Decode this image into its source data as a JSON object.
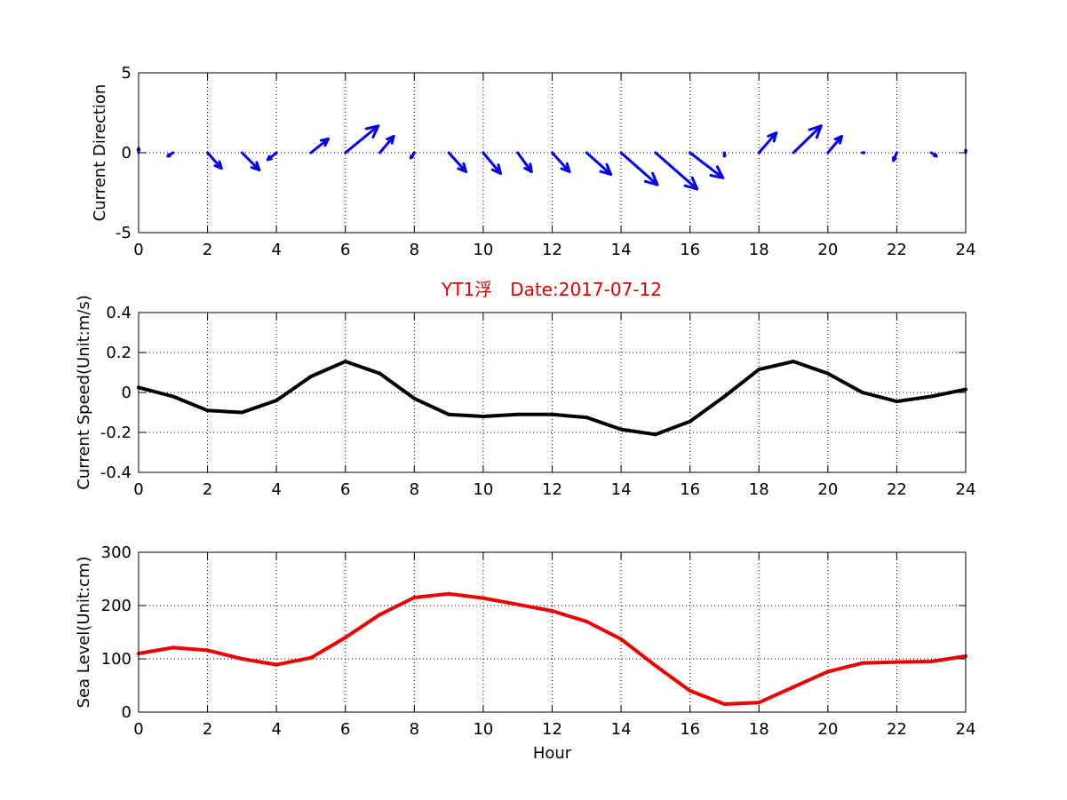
{
  "title": "YT1浮　Date:2017-07-12",
  "colors": {
    "direction": "#0000ee",
    "speed": "#000000",
    "sea_level": "#ee0000",
    "title": "#e00000"
  },
  "chart_data": [
    {
      "type": "quiver",
      "ylabel": "Current Direction",
      "xlabel": "",
      "xlim": [
        0,
        24
      ],
      "ylim": [
        -5,
        5
      ],
      "xticks": [
        0,
        2,
        4,
        6,
        8,
        10,
        12,
        14,
        16,
        18,
        20,
        22,
        24
      ],
      "yticks": [
        -5,
        0,
        5
      ],
      "grid": true,
      "x": [
        0,
        1,
        2,
        3,
        4,
        5,
        6,
        7,
        8,
        9,
        10,
        11,
        12,
        13,
        14,
        15,
        16,
        17,
        18,
        19,
        20,
        21,
        22,
        23,
        24
      ],
      "u": [
        0.0,
        -0.03,
        0.08,
        0.1,
        -0.05,
        0.1,
        0.19,
        0.08,
        -0.02,
        0.1,
        0.1,
        0.08,
        0.1,
        0.14,
        0.21,
        0.24,
        0.19,
        0.0,
        0.1,
        0.16,
        0.08,
        0.01,
        -0.02,
        0.03,
        0.0
      ],
      "v": [
        0.025,
        -0.02,
        -0.09,
        -0.1,
        -0.04,
        0.08,
        0.155,
        0.095,
        -0.03,
        -0.11,
        -0.12,
        -0.11,
        -0.11,
        -0.125,
        -0.185,
        -0.21,
        -0.145,
        -0.02,
        0.115,
        0.155,
        0.095,
        0.0,
        -0.045,
        -0.02,
        0.015
      ]
    },
    {
      "type": "line",
      "ylabel": "Current Speed(Unit:m/s)",
      "xlabel": "",
      "xlim": [
        0,
        24
      ],
      "ylim": [
        -0.4,
        0.4
      ],
      "xticks": [
        0,
        2,
        4,
        6,
        8,
        10,
        12,
        14,
        16,
        18,
        20,
        22,
        24
      ],
      "yticks": [
        -0.4,
        -0.2,
        0,
        0.2,
        0.4
      ],
      "grid": true,
      "x": [
        0,
        1,
        2,
        3,
        4,
        5,
        6,
        7,
        8,
        9,
        10,
        11,
        12,
        13,
        14,
        15,
        16,
        17,
        18,
        19,
        20,
        21,
        22,
        23,
        24
      ],
      "y": [
        0.025,
        -0.02,
        -0.09,
        -0.1,
        -0.04,
        0.08,
        0.155,
        0.095,
        -0.03,
        -0.11,
        -0.12,
        -0.11,
        -0.11,
        -0.125,
        -0.185,
        -0.21,
        -0.145,
        -0.02,
        0.115,
        0.155,
        0.095,
        0.0,
        -0.045,
        -0.02,
        0.015
      ]
    },
    {
      "type": "line",
      "ylabel": "Sea Level(Unit:cm)",
      "xlabel": "Hour",
      "xlim": [
        0,
        24
      ],
      "ylim": [
        0,
        300
      ],
      "xticks": [
        0,
        2,
        4,
        6,
        8,
        10,
        12,
        14,
        16,
        18,
        20,
        22,
        24
      ],
      "yticks": [
        0,
        100,
        200,
        300
      ],
      "grid": true,
      "x": [
        0,
        1,
        2,
        3,
        4,
        5,
        6,
        7,
        8,
        9,
        10,
        11,
        12,
        13,
        14,
        15,
        16,
        17,
        18,
        19,
        20,
        21,
        22,
        23,
        24
      ],
      "y": [
        110,
        121,
        116,
        100,
        89,
        102,
        140,
        183,
        215,
        222,
        214,
        202,
        190,
        170,
        137,
        87,
        40,
        15,
        18,
        47,
        76,
        92,
        94,
        95,
        105
      ]
    }
  ]
}
